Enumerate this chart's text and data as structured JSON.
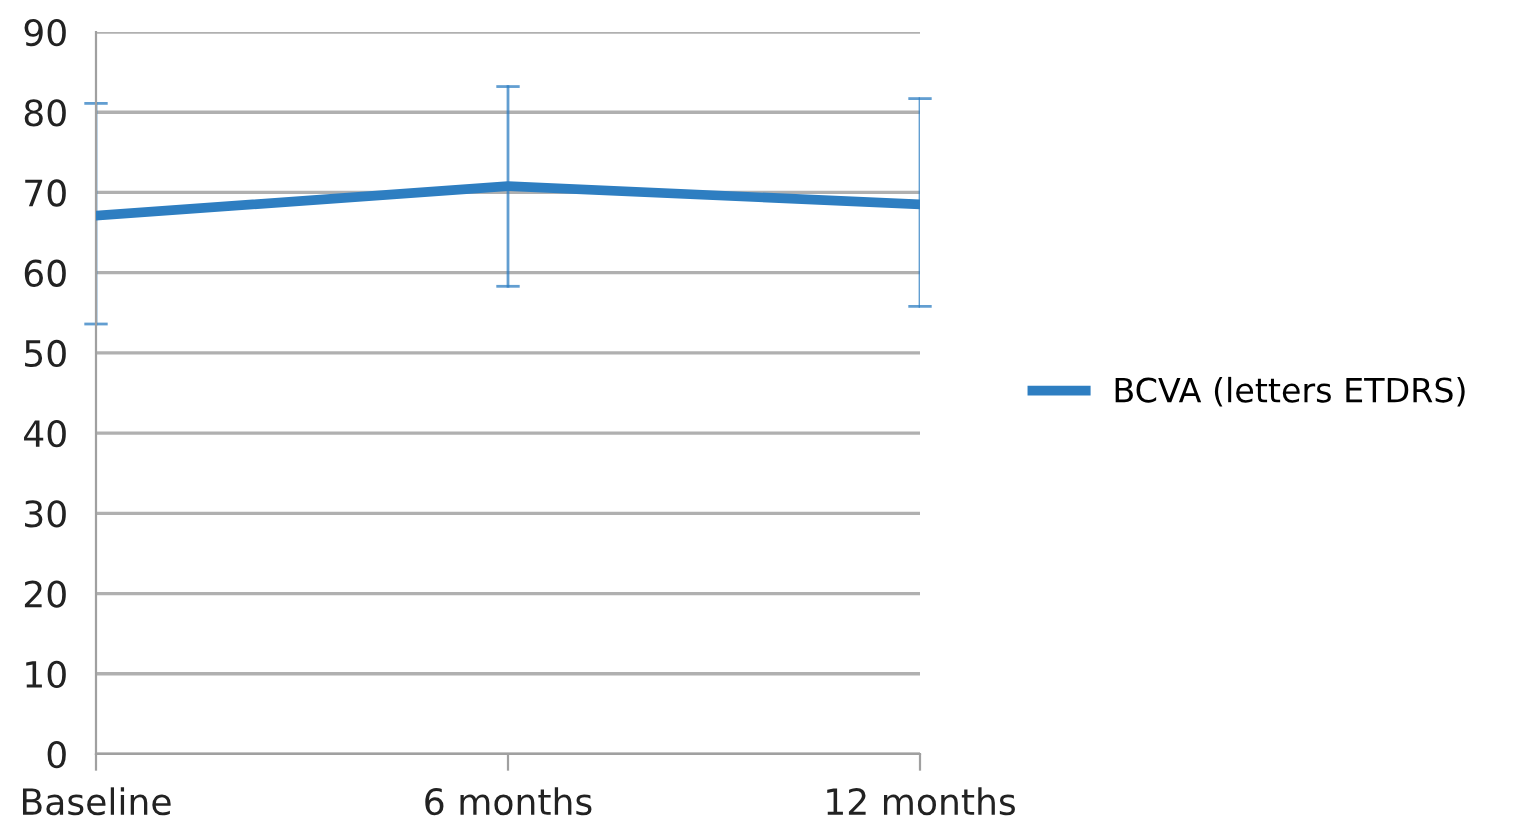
{
  "chart_data": {
    "type": "line",
    "categories": [
      "Baseline",
      "6 months",
      "12 months"
    ],
    "series": [
      {
        "name": "BCVA (letters ETDRS)",
        "color": "#2e7ec1",
        "values": [
          67.1,
          70.8,
          68.5
        ],
        "errors": [
          [
            53.6,
            81.1
          ],
          [
            58.3,
            83.2
          ],
          [
            55.8,
            81.7
          ]
        ]
      }
    ],
    "ylim": [
      0,
      90
    ],
    "yticks": [
      0,
      10,
      20,
      30,
      40,
      50,
      60,
      70,
      80,
      90
    ],
    "grid": "y",
    "legend": "right",
    "marker": "none",
    "line_style": "solid"
  }
}
